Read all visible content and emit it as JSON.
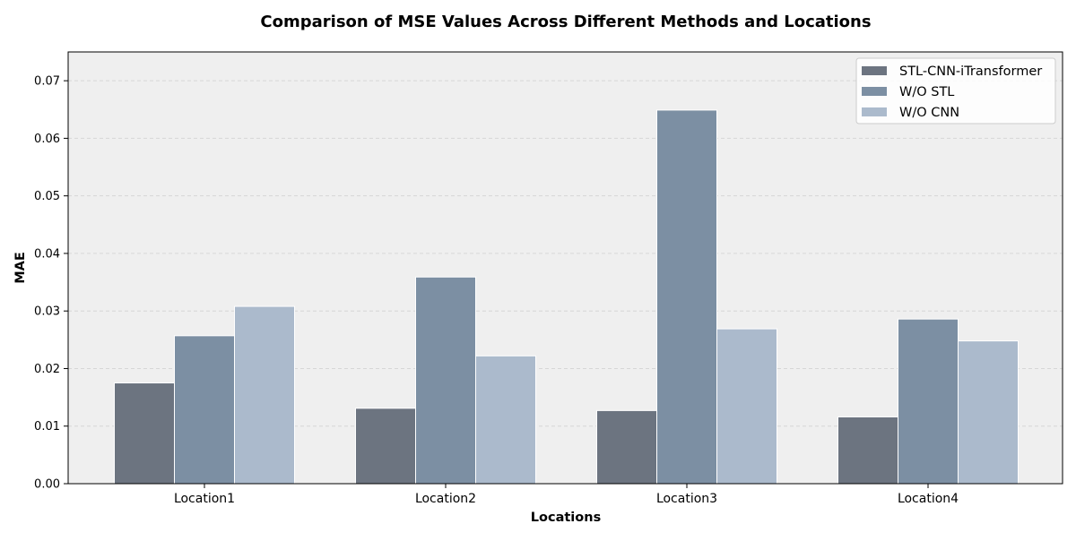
{
  "chart_data": {
    "type": "bar",
    "title": "Comparison of MSE Values Across Different Methods and Locations",
    "xlabel": "Locations",
    "ylabel": "MAE",
    "categories": [
      "Location1",
      "Location2",
      "Location3",
      "Location4"
    ],
    "ylim": [
      0,
      0.075
    ],
    "yticks": [
      "0.00",
      "0.01",
      "0.02",
      "0.03",
      "0.04",
      "0.05",
      "0.06",
      "0.07"
    ],
    "grid": true,
    "legend_position": "top-right",
    "series": [
      {
        "name": "STL-CNN-iTransformer",
        "color": "#6c7480",
        "values": [
          0.0175,
          0.0131,
          0.0127,
          0.0116
        ]
      },
      {
        "name": "W/O STL",
        "color": "#7c8fa3",
        "values": [
          0.0257,
          0.0359,
          0.0649,
          0.0286
        ]
      },
      {
        "name": "W/O CNN",
        "color": "#abbacc",
        "values": [
          0.0308,
          0.0222,
          0.0269,
          0.0248
        ]
      }
    ]
  }
}
